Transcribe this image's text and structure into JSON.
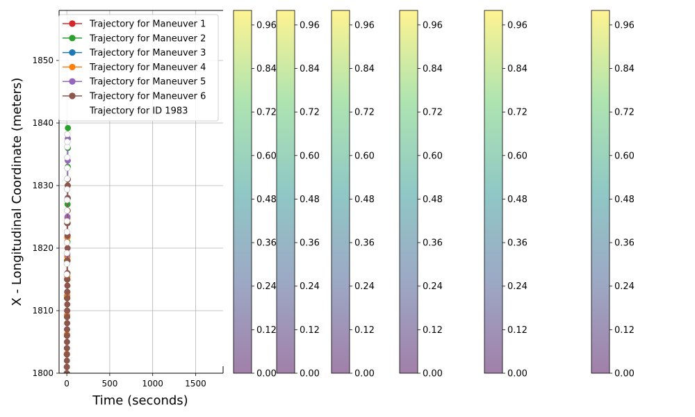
{
  "chart_data": {
    "type": "line",
    "xlabel": "Time (seconds)",
    "ylabel": "X - Longitudinal Coordinate (meters)",
    "xlim": [
      -90,
      1820
    ],
    "ylim": [
      1800,
      1858
    ],
    "xticks": [
      "0",
      "500",
      "1000",
      "1500"
    ],
    "yticks": [
      "1800",
      "1810",
      "1820",
      "1830",
      "1840",
      "1850"
    ],
    "grid": true,
    "legend_position": "top-left",
    "series": [
      {
        "name": "Trajectory for Maneuver 1",
        "color": "#d62728",
        "x": [
          0,
          0.5,
          1,
          1.5,
          2,
          2.5,
          3,
          3.5,
          4
        ],
        "y": [
          1800,
          1803,
          1806,
          1809,
          1812,
          1815,
          1818,
          1821,
          1824
        ]
      },
      {
        "name": "Trajectory for Maneuver 2",
        "color": "#2ca02c",
        "x": [
          0,
          1,
          2,
          3,
          4,
          5,
          6,
          7,
          8,
          9,
          10,
          11,
          12,
          13
        ],
        "y": [
          1800,
          1803,
          1806,
          1809,
          1812,
          1815,
          1818,
          1821,
          1824,
          1827,
          1830,
          1833,
          1836,
          1839.2
        ]
      },
      {
        "name": "Trajectory for Maneuver 3",
        "color": "#1f77b4",
        "x": [
          0,
          1,
          2,
          3,
          4,
          5,
          6,
          7,
          8,
          9,
          10
        ],
        "y": [
          1800,
          1803.1,
          1806.2,
          1809.3,
          1812.4,
          1815.5,
          1818.6,
          1821.7,
          1824.8,
          1827.9,
          1831
        ]
      },
      {
        "name": "Trajectory for Maneuver 4",
        "color": "#ff7f0e",
        "x": [
          0,
          1,
          2,
          3,
          4,
          5,
          6,
          7,
          8
        ],
        "y": [
          1800,
          1803.1,
          1806.2,
          1809.3,
          1812.4,
          1815.5,
          1818.6,
          1821.7,
          1824.8
        ]
      },
      {
        "name": "Trajectory for Maneuver 5",
        "color": "#9467bd",
        "x": [
          0,
          1,
          2,
          3,
          4,
          5,
          6,
          7,
          8,
          9,
          10,
          11,
          12
        ],
        "y": [
          1801,
          1804,
          1807,
          1810,
          1813,
          1816,
          1819,
          1822,
          1825,
          1828,
          1831,
          1834,
          1837.5
        ]
      },
      {
        "name": "Trajectory for Maneuver 6",
        "color": "#8c564b",
        "x": [
          0,
          0.5,
          1,
          1.5,
          2,
          2.5,
          3,
          3.5,
          4,
          4.5,
          5,
          5.5,
          6,
          6.5,
          7,
          7.5,
          8,
          8.5,
          9,
          9.5,
          10,
          10.5,
          11,
          11.5,
          12
        ],
        "y": [
          1800,
          1801,
          1802,
          1803,
          1804,
          1805,
          1806,
          1807,
          1808,
          1809,
          1810,
          1811,
          1812,
          1813,
          1814,
          1815,
          1816,
          1818,
          1820,
          1822,
          1824,
          1826,
          1828,
          1830,
          1831
        ]
      },
      {
        "name": "Trajectory for ID 1983",
        "color": "#ffffff",
        "edgecolor": "#b0b0b0",
        "x": [
          0,
          0.5,
          1,
          1.5,
          2,
          2.5,
          3,
          3.5,
          4,
          4.5,
          5,
          5.5,
          6,
          6.5,
          7
        ],
        "y": [
          1815.8,
          1817.5,
          1819.2,
          1820.9,
          1822.6,
          1824.3,
          1826,
          1827.7,
          1829.4,
          1831.1,
          1832.8,
          1834.5,
          1836.2,
          1837,
          1838.2
        ]
      }
    ],
    "colorbars": [
      {
        "ticks": [
          "0.00",
          "0.12",
          "0.24",
          "0.36",
          "0.48",
          "0.60",
          "0.72",
          "0.84",
          "0.96"
        ],
        "tick_values": [
          0,
          0.12,
          0.24,
          0.36,
          0.48,
          0.6,
          0.72,
          0.84,
          0.96
        ],
        "range": [
          0,
          1
        ]
      },
      {
        "ticks": [
          "0.00",
          "0.12",
          "0.24",
          "0.36",
          "0.48",
          "0.60",
          "0.72",
          "0.84",
          "0.96"
        ],
        "tick_values": [
          0,
          0.12,
          0.24,
          0.36,
          0.48,
          0.6,
          0.72,
          0.84,
          0.96
        ],
        "range": [
          0,
          1
        ]
      },
      {
        "ticks": [
          "0.00",
          "0.12",
          "0.24",
          "0.36",
          "0.48",
          "0.60",
          "0.72",
          "0.84",
          "0.96"
        ],
        "tick_values": [
          0,
          0.12,
          0.24,
          0.36,
          0.48,
          0.6,
          0.72,
          0.84,
          0.96
        ],
        "range": [
          0,
          1
        ]
      },
      {
        "ticks": [
          "0.00",
          "0.12",
          "0.24",
          "0.36",
          "0.48",
          "0.60",
          "0.72",
          "0.84",
          "0.96"
        ],
        "tick_values": [
          0,
          0.12,
          0.24,
          0.36,
          0.48,
          0.6,
          0.72,
          0.84,
          0.96
        ],
        "range": [
          0,
          1
        ]
      },
      {
        "ticks": [
          "0.00",
          "0.12",
          "0.24",
          "0.36",
          "0.48",
          "0.60",
          "0.72",
          "0.84",
          "0.96"
        ],
        "tick_values": [
          0,
          0.12,
          0.24,
          0.36,
          0.48,
          0.6,
          0.72,
          0.84,
          0.96
        ],
        "range": [
          0,
          1
        ]
      },
      {
        "ticks": [
          "0.00",
          "0.12",
          "0.24",
          "0.36",
          "0.48",
          "0.60",
          "0.72",
          "0.84",
          "0.96"
        ],
        "tick_values": [
          0,
          0.12,
          0.24,
          0.36,
          0.48,
          0.6,
          0.72,
          0.84,
          0.96
        ],
        "range": [
          0,
          1
        ]
      }
    ],
    "colormap": "viridis",
    "colormap_alpha": 0.5
  }
}
